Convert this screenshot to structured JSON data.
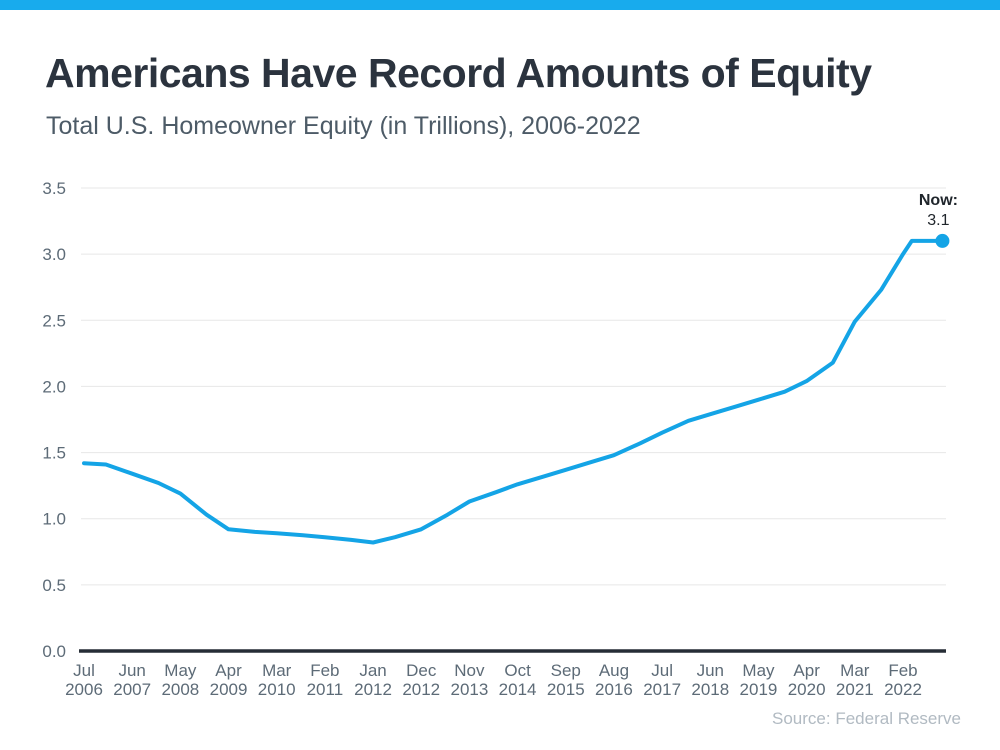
{
  "accent": {
    "bar_color": "#18ABED",
    "line_color": "#14A4E6"
  },
  "header": {
    "title": "Americans Have Record Amounts of Equity",
    "subtitle": "Total U.S. Homeowner Equity (in Trillions), 2006-2022"
  },
  "source": "Source: Federal Reserve",
  "chart_data": {
    "type": "line",
    "title": "Total U.S. Homeowner Equity (in Trillions), 2006-2022",
    "ylabel": "",
    "xlabel": "",
    "ylim": [
      0,
      3.5
    ],
    "grid": "horizontal",
    "legend_position": "none",
    "y_tick_labels": [
      "0.0",
      "0.5",
      "1.0",
      "1.5",
      "2.0",
      "2.5",
      "3.0",
      "3.5"
    ],
    "y_tick_values": [
      0.0,
      0.5,
      1.0,
      1.5,
      2.0,
      2.5,
      3.0,
      3.5
    ],
    "x_ticks": [
      {
        "month": "Jul",
        "year": "2006"
      },
      {
        "month": "Jun",
        "year": "2007"
      },
      {
        "month": "May",
        "year": "2008"
      },
      {
        "month": "Apr",
        "year": "2009"
      },
      {
        "month": "Mar",
        "year": "2010"
      },
      {
        "month": "Feb",
        "year": "2011"
      },
      {
        "month": "Jan",
        "year": "2012"
      },
      {
        "month": "Dec",
        "year": "2012"
      },
      {
        "month": "Nov",
        "year": "2013"
      },
      {
        "month": "Oct",
        "year": "2014"
      },
      {
        "month": "Sep",
        "year": "2015"
      },
      {
        "month": "Aug",
        "year": "2016"
      },
      {
        "month": "Jul",
        "year": "2017"
      },
      {
        "month": "Jun",
        "year": "2018"
      },
      {
        "month": "May",
        "year": "2019"
      },
      {
        "month": "Apr",
        "year": "2020"
      },
      {
        "month": "Mar",
        "year": "2021"
      },
      {
        "month": "Feb",
        "year": "2022"
      }
    ],
    "x_tick_month_interval": 11,
    "point_format": "[months_since_jul_2006, equity_trillions]",
    "series": [
      {
        "name": "Total U.S. Homeowner Equity (in Trillions)",
        "color": "#14A4E6",
        "points": [
          [
            0,
            1.42
          ],
          [
            5,
            1.41
          ],
          [
            11,
            1.34
          ],
          [
            17,
            1.27
          ],
          [
            22,
            1.19
          ],
          [
            28,
            1.03
          ],
          [
            33,
            0.92
          ],
          [
            39,
            0.9
          ],
          [
            44,
            0.89
          ],
          [
            50,
            0.875
          ],
          [
            55,
            0.86
          ],
          [
            61,
            0.84
          ],
          [
            66,
            0.82
          ],
          [
            71,
            0.86
          ],
          [
            77,
            0.92
          ],
          [
            83,
            1.03
          ],
          [
            88,
            1.13
          ],
          [
            94,
            1.2
          ],
          [
            99,
            1.26
          ],
          [
            105,
            1.32
          ],
          [
            110,
            1.37
          ],
          [
            116,
            1.43
          ],
          [
            121,
            1.48
          ],
          [
            127,
            1.57
          ],
          [
            132,
            1.65
          ],
          [
            138,
            1.74
          ],
          [
            143,
            1.79
          ],
          [
            149,
            1.85
          ],
          [
            154,
            1.9
          ],
          [
            160,
            1.96
          ],
          [
            165,
            2.04
          ],
          [
            171,
            2.18
          ],
          [
            176,
            2.49
          ],
          [
            182,
            2.73
          ],
          [
            187,
            3.0
          ],
          [
            189,
            3.1
          ],
          [
            196,
            3.1
          ]
        ]
      }
    ],
    "annotation": {
      "label": "Now:",
      "value": "3.1"
    }
  }
}
